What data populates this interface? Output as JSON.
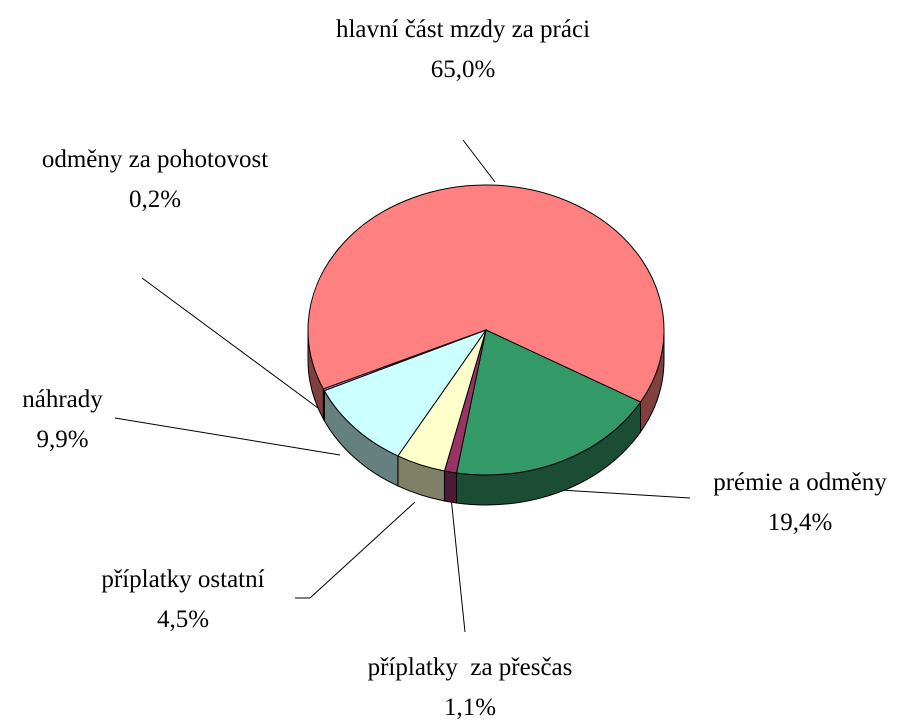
{
  "chart_data": {
    "type": "pie3d",
    "categories": [
      "hlavní část mzdy za práci",
      "prémie a odměny",
      "příplatky  za přesčas",
      "příplatky ostatní",
      "náhrady",
      "odměny za pohotovost"
    ],
    "values": [
      65.0,
      19.4,
      1.1,
      4.5,
      9.9,
      0.2
    ],
    "value_labels": [
      "65,0%",
      "19,4%",
      "1,1%",
      "4,5%",
      "9,9%",
      "0,2%"
    ],
    "colors": [
      "#ff8080",
      "#339966",
      "#993366",
      "#ffffcc",
      "#ccffff",
      "#cc99ff"
    ]
  }
}
